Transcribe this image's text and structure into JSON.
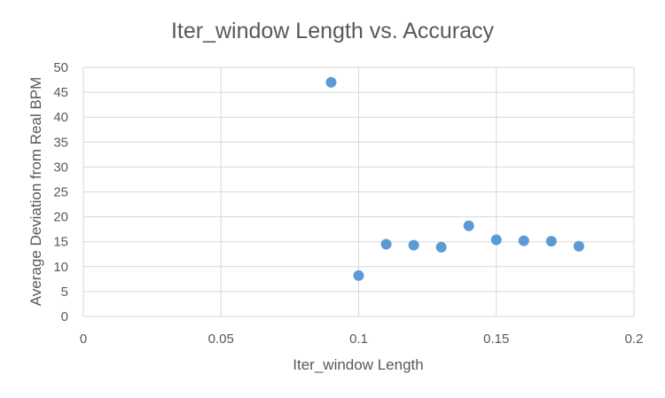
{
  "chart_data": {
    "type": "scatter",
    "title": "Iter_window Length vs. Accuracy",
    "xlabel": "Iter_window Length",
    "ylabel": "Average Deviation from Real BPM",
    "xlim": [
      0,
      0.2
    ],
    "ylim": [
      0,
      50
    ],
    "x_ticks": [
      "0",
      "0.05",
      "0.1",
      "0.15",
      "0.2"
    ],
    "y_ticks": [
      "0",
      "5",
      "10",
      "15",
      "20",
      "25",
      "30",
      "35",
      "40",
      "45",
      "50"
    ],
    "grid": true,
    "legend": "none",
    "series": [
      {
        "color": "#5B9BD5",
        "points": [
          {
            "x": 0.09,
            "y": 47
          },
          {
            "x": 0.1,
            "y": 8.2
          },
          {
            "x": 0.11,
            "y": 14.5
          },
          {
            "x": 0.12,
            "y": 14.3
          },
          {
            "x": 0.13,
            "y": 13.9
          },
          {
            "x": 0.14,
            "y": 18.2
          },
          {
            "x": 0.15,
            "y": 15.4
          },
          {
            "x": 0.16,
            "y": 15.2
          },
          {
            "x": 0.17,
            "y": 15.1
          },
          {
            "x": 0.18,
            "y": 14.1
          }
        ]
      }
    ],
    "colors": {
      "gridline": "#D9D9D9",
      "text": "#595959"
    }
  }
}
